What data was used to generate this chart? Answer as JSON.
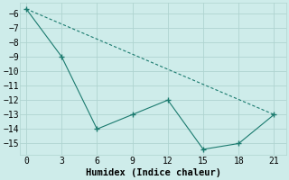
{
  "line1_x": [
    0,
    21
  ],
  "line1_y": [
    -5.7,
    -13.0
  ],
  "line2_x": [
    0,
    3,
    6,
    9,
    12,
    15,
    18,
    21
  ],
  "line2_y": [
    -5.7,
    -9.0,
    -14.0,
    -13.0,
    -12.0,
    -15.4,
    -15.0,
    -13.0
  ],
  "x_ticks": [
    0,
    3,
    6,
    9,
    12,
    15,
    18,
    21
  ],
  "y_ticks": [
    -6,
    -7,
    -8,
    -9,
    -10,
    -11,
    -12,
    -13,
    -14,
    -15
  ],
  "xlim": [
    -0.5,
    22.0
  ],
  "ylim": [
    -15.8,
    -5.3
  ],
  "xlabel": "Humidex (Indice chaleur)",
  "line_color": "#1a7a6e",
  "bg_color": "#ceecea",
  "grid_color": "#afd4d0",
  "xlabel_fontsize": 7.5,
  "tick_fontsize": 7
}
